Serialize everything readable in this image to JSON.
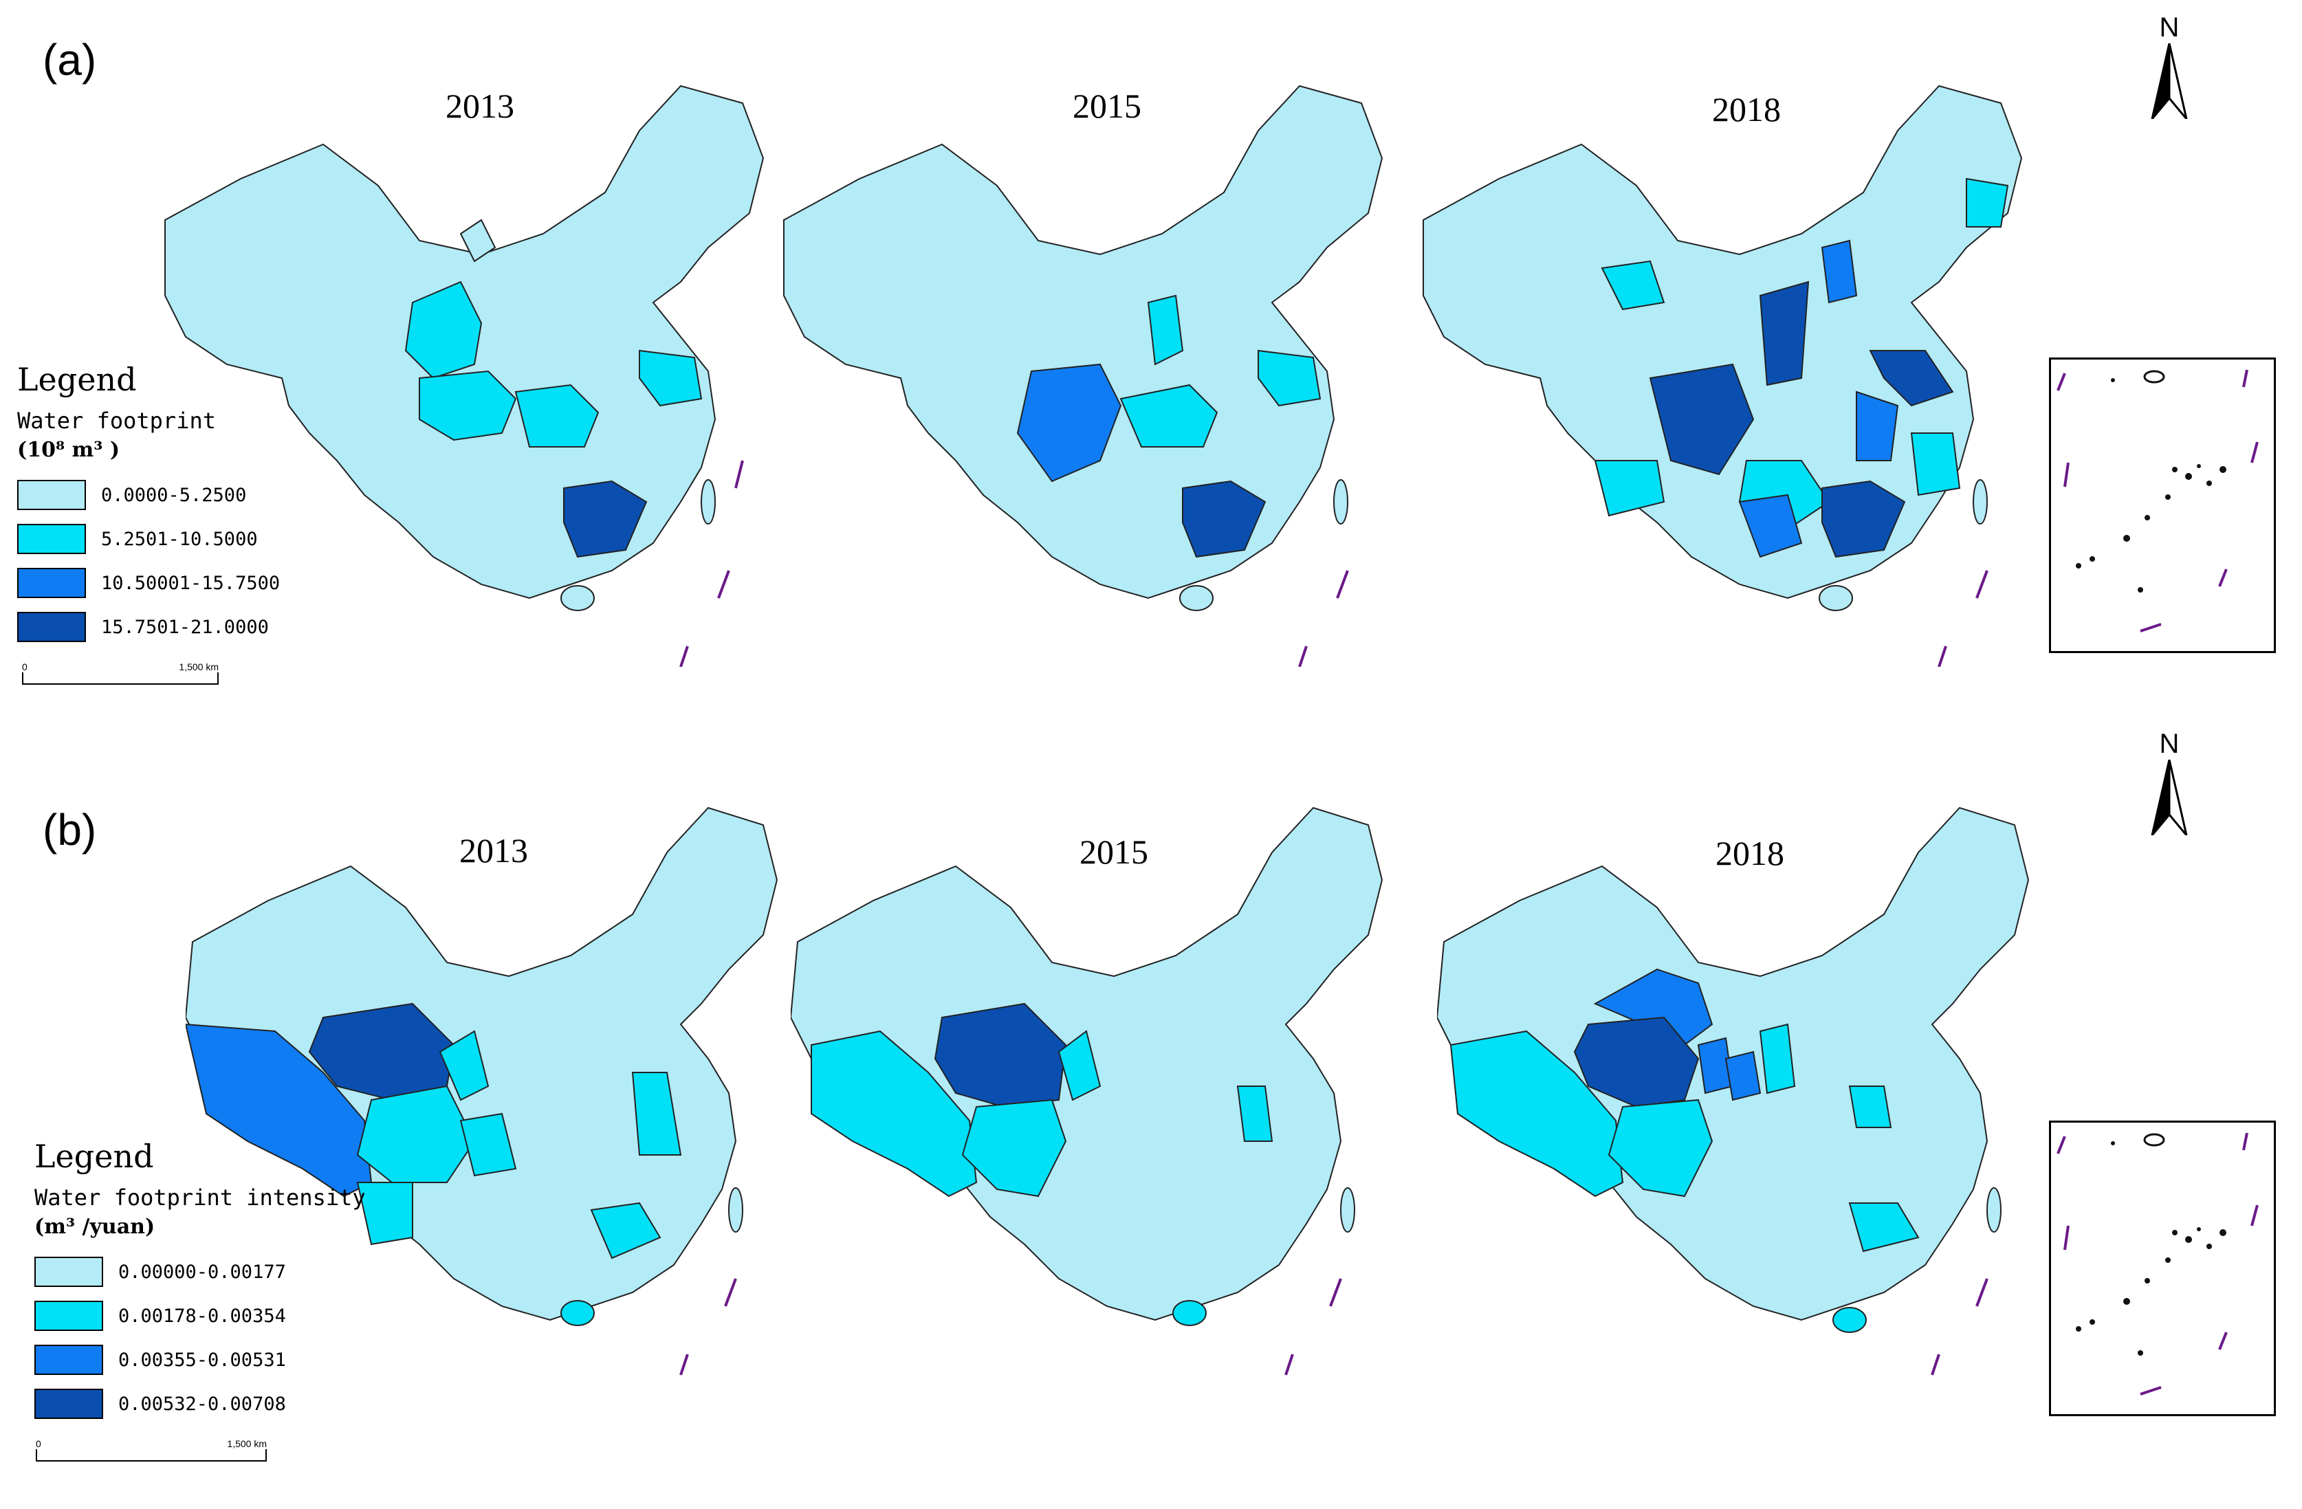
{
  "figure": {
    "panel_a": {
      "label": "(a)",
      "years": [
        "2013",
        "2015",
        "2018"
      ],
      "legend": {
        "title": "Legend",
        "subtitle": "Water footprint",
        "unit": "(10⁸ m³ )",
        "classes": [
          {
            "label": "0.0000-5.2500",
            "color": "#b3ebf7"
          },
          {
            "label": "5.2501-10.5000",
            "color": "#00e0f7"
          },
          {
            "label": "10.50001-15.7500",
            "color": "#0f7cf4"
          },
          {
            "label": "15.7501-21.0000",
            "color": "#0a4fb0"
          }
        ]
      },
      "scale": {
        "start": "0",
        "end": "1,500 km"
      },
      "north": "N"
    },
    "panel_b": {
      "label": "(b)",
      "years": [
        "2013",
        "2015",
        "2018"
      ],
      "legend": {
        "title": "Legend",
        "subtitle": "Water footprint intensity",
        "unit": "(m³ /yuan)",
        "classes": [
          {
            "label": "0.00000-0.00177",
            "color": "#b3ebf7"
          },
          {
            "label": "0.00178-0.00354",
            "color": "#00e0f7"
          },
          {
            "label": "0.00355-0.00531",
            "color": "#0f7cf4"
          },
          {
            "label": "0.00532-0.00708",
            "color": "#0a4fb0"
          }
        ]
      },
      "scale": {
        "start": "0",
        "end": "1,500 km"
      },
      "north": "N"
    }
  }
}
